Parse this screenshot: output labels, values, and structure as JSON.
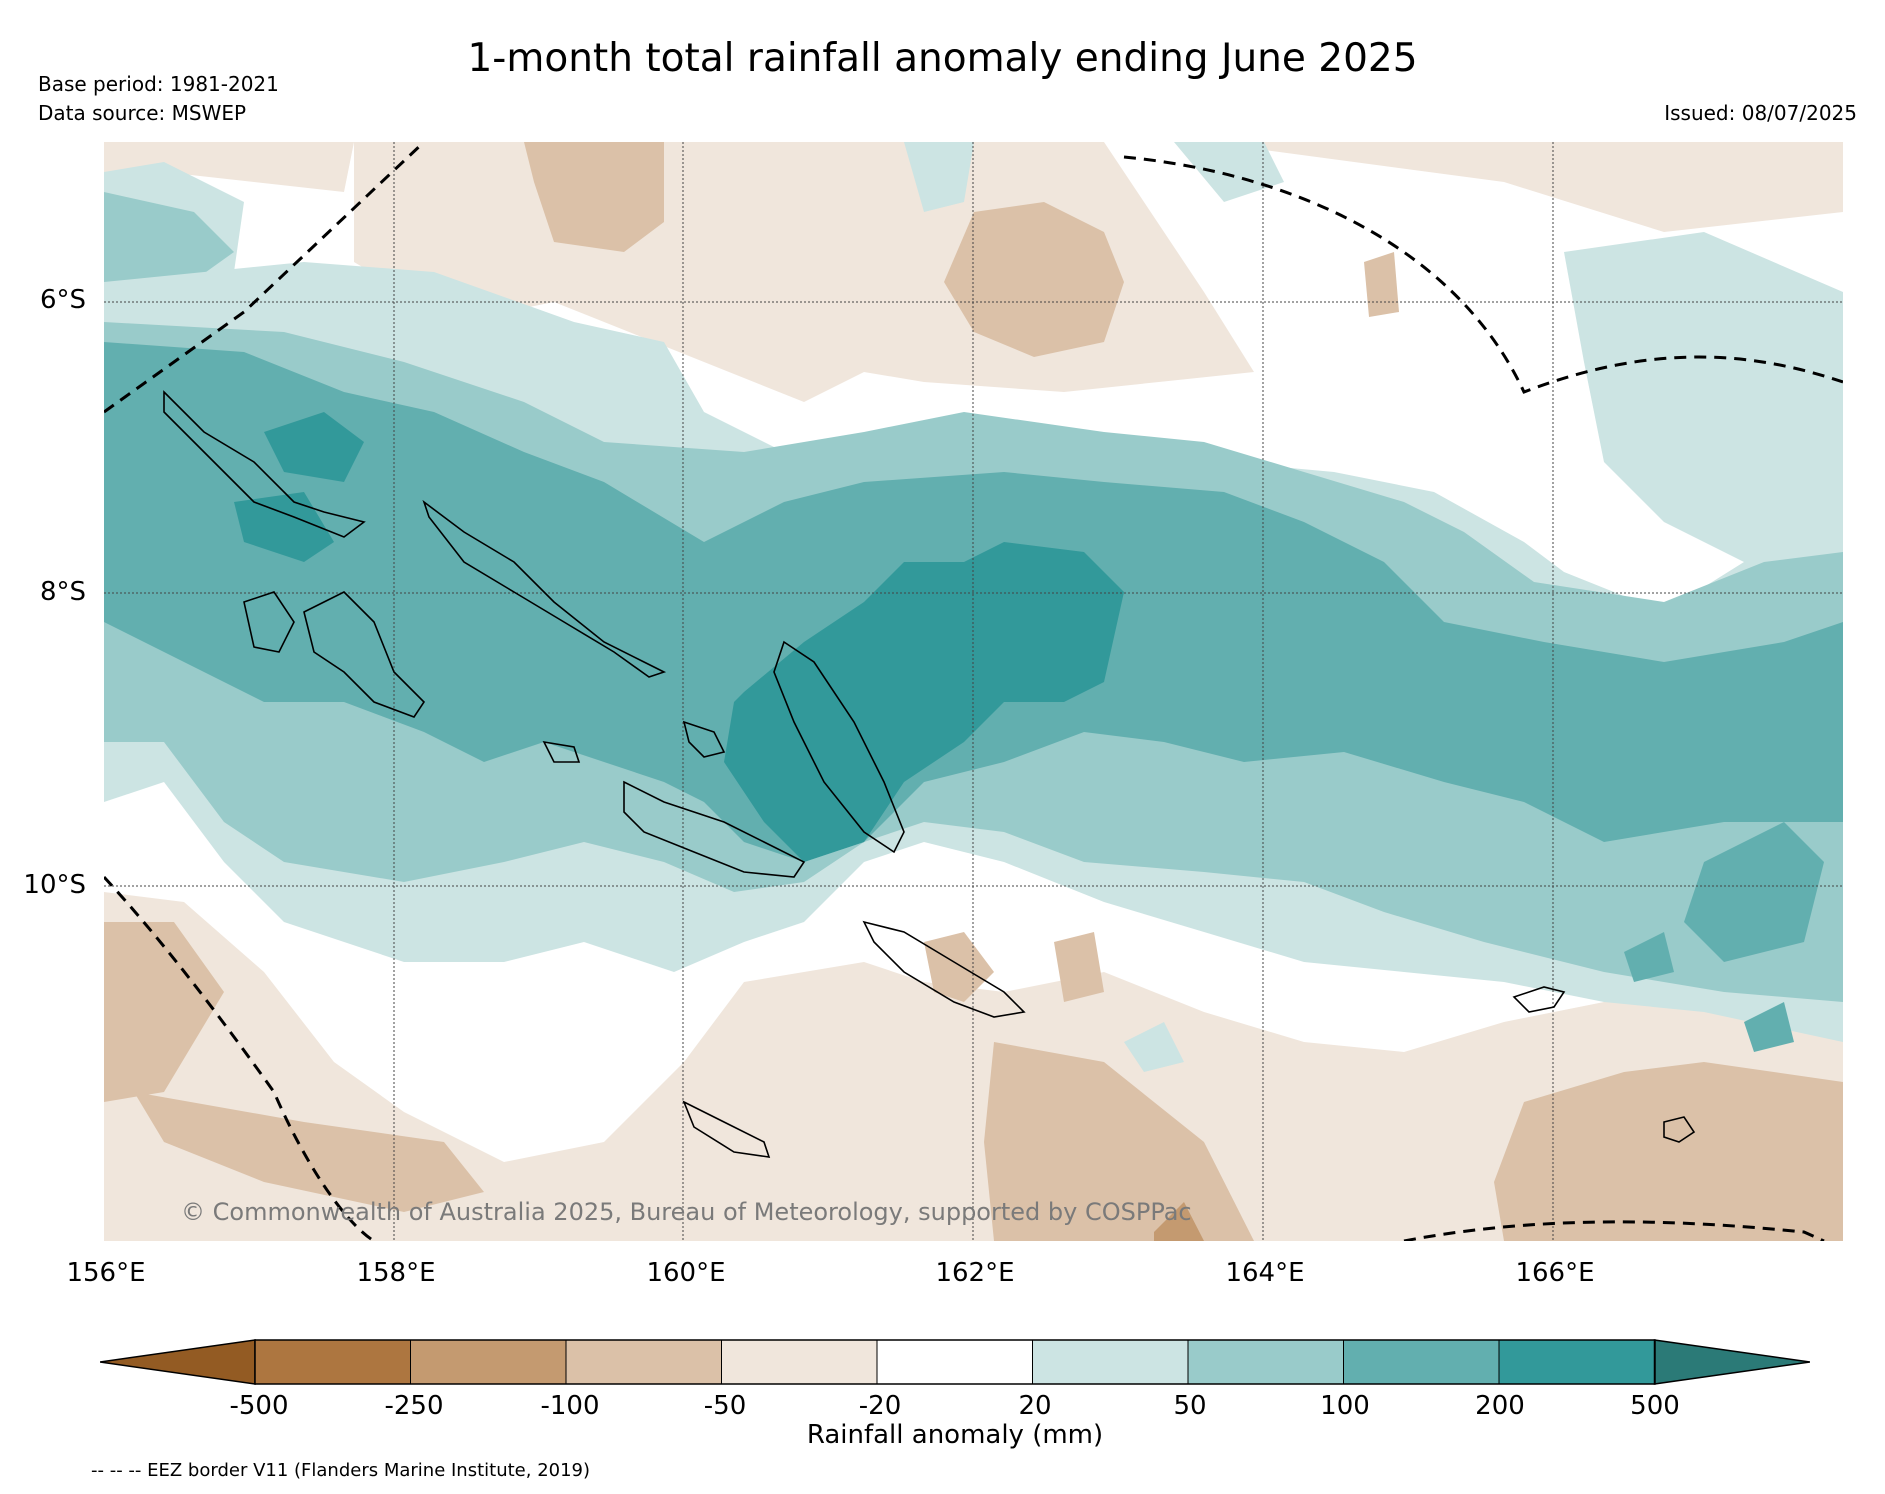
{
  "header": {
    "title": "1-month total rainfall anomaly ending June 2025",
    "base_period": "Base period: 1981-2021",
    "data_source": "Data source: MSWEP",
    "issued": "Issued: 08/07/2025"
  },
  "map": {
    "copyright": "© Commonwealth of Australia 2025, Bureau of Meteorology, supported by COSPPac",
    "lat_labels": [
      "6°S",
      "8°S",
      "10°S"
    ],
    "lon_labels": [
      "156°E",
      "158°E",
      "160°E",
      "162°E",
      "164°E",
      "166°E"
    ],
    "lat_range": [
      -12.3,
      -4.9
    ],
    "lon_range": [
      156,
      168
    ]
  },
  "colorbar": {
    "label": "Rainfall anomaly (mm)",
    "ticks": [
      "-500",
      "-250",
      "-100",
      "-50",
      "-20",
      "20",
      "50",
      "100",
      "200",
      "500"
    ],
    "colors": [
      "#935b23",
      "#ad7640",
      "#c49a70",
      "#dbc1a8",
      "#f0e6dc",
      "#ffffff",
      "#cce4e3",
      "#99cbca",
      "#62afaf",
      "#32999a",
      "#2b7a77"
    ]
  },
  "footer": {
    "eez_note": "-- -- -- EEZ border V11 (Flanders Marine Institute, 2019)"
  }
}
